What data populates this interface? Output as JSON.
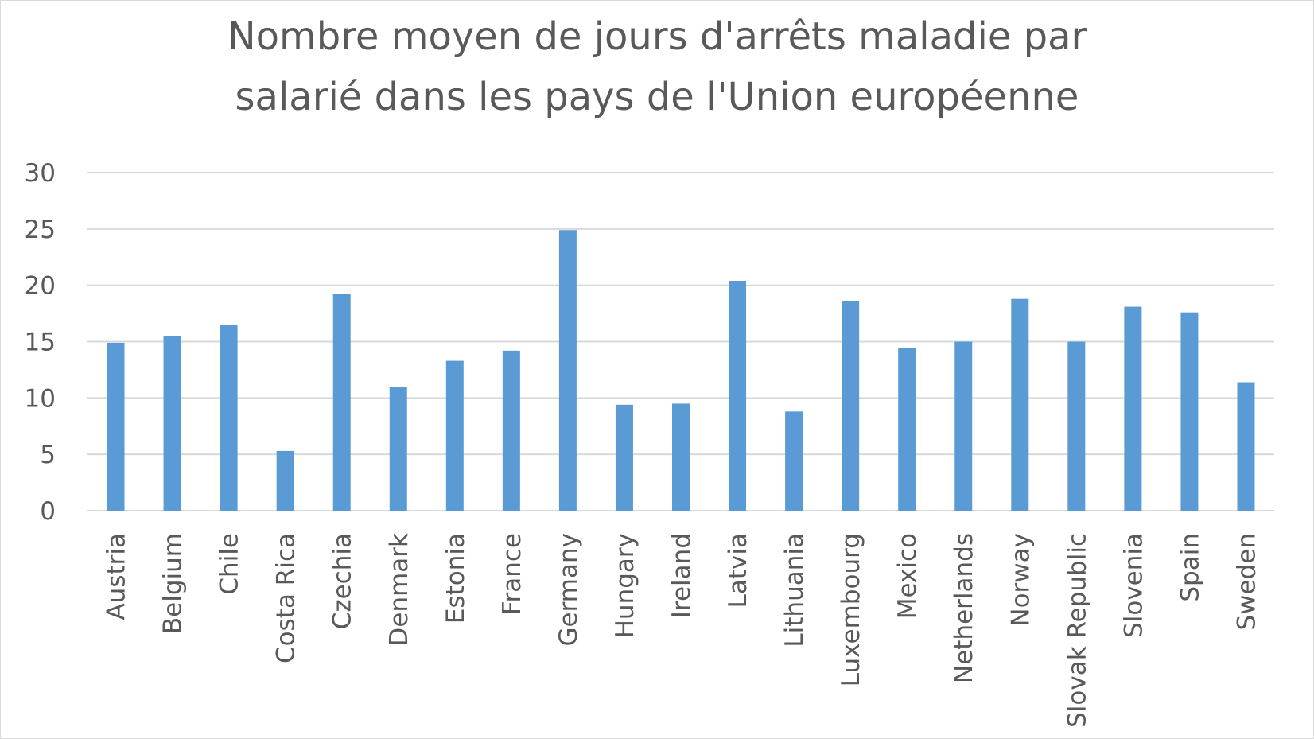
{
  "chart_data": {
    "type": "bar",
    "title_lines": [
      "Nombre moyen de jours d'arrêts maladie par",
      "salarié dans les pays de l'Union européenne"
    ],
    "categories": [
      "Austria",
      "Belgium",
      "Chile",
      "Costa Rica",
      "Czechia",
      "Denmark",
      "Estonia",
      "France",
      "Germany",
      "Hungary",
      "Ireland",
      "Latvia",
      "Lithuania",
      "Luxembourg",
      "Mexico",
      "Netherlands",
      "Norway",
      "Slovak Republic",
      "Slovenia",
      "Spain",
      "Sweden"
    ],
    "values": [
      14.9,
      15.5,
      16.5,
      5.3,
      19.2,
      11.0,
      13.3,
      14.2,
      24.9,
      9.4,
      9.5,
      20.4,
      8.8,
      18.6,
      14.4,
      15.0,
      18.8,
      15.0,
      18.1,
      17.6,
      11.4
    ],
    "ylim": [
      0,
      30
    ],
    "yticks": [
      0,
      5,
      10,
      15,
      20,
      25,
      30
    ],
    "xlabel": "",
    "ylabel": "",
    "grid": true,
    "legend": "none",
    "colors": {
      "bar": "#5b9bd5",
      "grid": "#d9d9d9",
      "text": "#595959"
    }
  }
}
